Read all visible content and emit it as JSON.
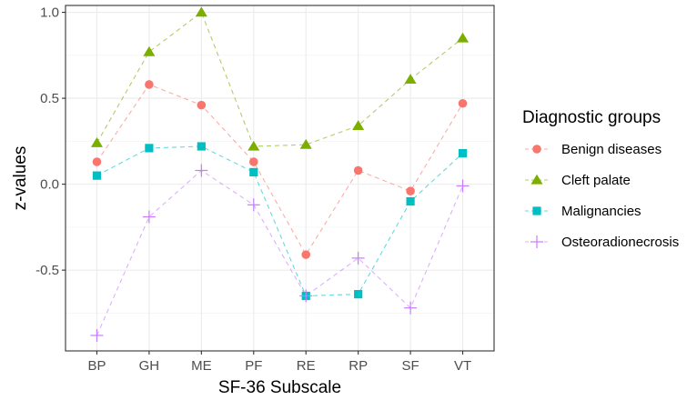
{
  "chart_data": {
    "type": "line",
    "title": "",
    "xlabel": "SF-36 Subscale",
    "ylabel": "z-values",
    "categories": [
      "BP",
      "GH",
      "ME",
      "PF",
      "RE",
      "RP",
      "SF",
      "VT"
    ],
    "ylim": [
      -0.97,
      1.04
    ],
    "yticks": [
      -0.5,
      0.0,
      0.5,
      1.0
    ],
    "ytick_labels": [
      "-0.5",
      "0.0",
      "0.5",
      "1.0"
    ],
    "grid": true,
    "legend": {
      "title": "Diagnostic groups",
      "position": "right"
    },
    "series": [
      {
        "name": "Benign diseases",
        "color": "#F8766D",
        "marker": "circle",
        "values": [
          0.13,
          0.58,
          0.46,
          0.13,
          -0.41,
          0.08,
          -0.04,
          0.47
        ]
      },
      {
        "name": "Cleft palate",
        "color": "#7CAE00",
        "marker": "triangle",
        "values": [
          0.24,
          0.77,
          1.0,
          0.22,
          0.23,
          0.34,
          0.61,
          0.85
        ]
      },
      {
        "name": "Malignancies",
        "color": "#00BFC4",
        "marker": "square",
        "values": [
          0.05,
          0.21,
          0.22,
          0.07,
          -0.65,
          -0.64,
          -0.1,
          0.18
        ]
      },
      {
        "name": "Osteoradionecrosis",
        "color": "#C77CFF",
        "marker": "plus",
        "values": [
          -0.88,
          -0.19,
          0.08,
          -0.12,
          -0.65,
          -0.43,
          -0.72,
          -0.01
        ]
      }
    ]
  }
}
